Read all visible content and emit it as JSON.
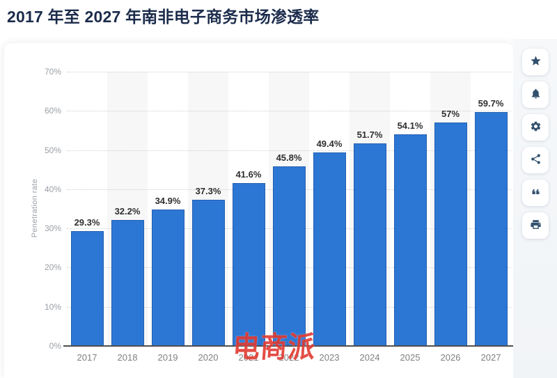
{
  "page": {
    "title": "2017 年至 2027 年南非电子商务市场渗透率"
  },
  "chart_data": {
    "type": "bar",
    "title": "2017 年至 2027 年南非电子商务市场渗透率",
    "categories": [
      "2017",
      "2018",
      "2019",
      "2020",
      "2021",
      "2022",
      "2023",
      "2024",
      "2025",
      "2026",
      "2027"
    ],
    "values": [
      29.3,
      32.2,
      34.9,
      37.3,
      41.6,
      45.8,
      49.4,
      51.7,
      54.1,
      57,
      59.7
    ],
    "value_labels": [
      "29.3%",
      "32.2%",
      "34.9%",
      "37.3%",
      "41.6%",
      "45.8%",
      "49.4%",
      "51.7%",
      "54.1%",
      "57%",
      "59.7%"
    ],
    "xlabel": "",
    "ylabel": "Penetration rate",
    "ylim": [
      0,
      70
    ],
    "ytick_labels": [
      "0%",
      "10%",
      "20%",
      "30%",
      "40%",
      "50%",
      "60%",
      "70%"
    ],
    "grid": "horizontal-dotted",
    "legend": "none",
    "bar_color": "#2d77d4",
    "band_color": "#f7f7f7"
  },
  "toolbar": {
    "buttons": [
      {
        "id": "favorite",
        "icon": "star-icon"
      },
      {
        "id": "notifications",
        "icon": "bell-icon"
      },
      {
        "id": "settings",
        "icon": "gear-icon"
      },
      {
        "id": "share",
        "icon": "share-icon"
      },
      {
        "id": "cite",
        "icon": "quote-icon"
      },
      {
        "id": "print",
        "icon": "printer-icon"
      }
    ]
  },
  "watermark": {
    "text": "电商派",
    "color": "#e23a31"
  }
}
